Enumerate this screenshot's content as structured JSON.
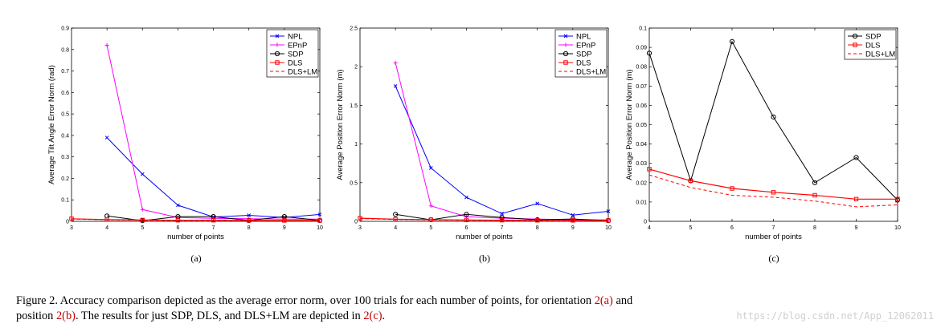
{
  "chart_data": [
    {
      "type": "line",
      "panel_label": "(a)",
      "xlabel": "number of points",
      "ylabel": "Average Tilt Angle Error Norm (rad)",
      "xlim": [
        3,
        10
      ],
      "ylim": [
        0,
        0.9
      ],
      "xticks": [
        "3",
        "4",
        "5",
        "6",
        "7",
        "8",
        "9",
        "10"
      ],
      "yticks": [
        "0",
        "0.1",
        "0.2",
        "0.3",
        "0.4",
        "0.5",
        "0.6",
        "0.7",
        "0.8",
        "0.9"
      ],
      "legend_position": "top-right",
      "series": [
        {
          "name": "NPL",
          "color": "#0000ff",
          "dash": "",
          "marker": "x",
          "x": [
            4,
            5,
            6,
            7,
            8,
            9,
            10
          ],
          "y": [
            0.39,
            0.22,
            0.075,
            0.02,
            0.028,
            0.018,
            0.032
          ]
        },
        {
          "name": "EPnP",
          "color": "#ff00ff",
          "dash": "",
          "marker": "plus",
          "x": [
            4,
            5,
            6,
            7,
            8,
            9,
            10
          ],
          "y": [
            0.82,
            0.055,
            0.018,
            0.014,
            0.012,
            0.01,
            0.01
          ]
        },
        {
          "name": "SDP",
          "color": "#000000",
          "dash": "",
          "marker": "circle",
          "x": [
            4,
            5,
            6,
            7,
            8,
            9,
            10
          ],
          "y": [
            0.025,
            0.003,
            0.022,
            0.022,
            0.004,
            0.022,
            0.004
          ]
        },
        {
          "name": "DLS",
          "color": "#ff0000",
          "dash": "",
          "marker": "square",
          "x": [
            3,
            4,
            5,
            6,
            7,
            8,
            9,
            10
          ],
          "y": [
            0.012,
            0.008,
            0.006,
            0.005,
            0.005,
            0.004,
            0.004,
            0.004
          ]
        },
        {
          "name": "DLS+LM",
          "color": "#ff0000",
          "dash": "4,3",
          "marker": "none",
          "x": [
            3,
            4,
            5,
            6,
            7,
            8,
            9,
            10
          ],
          "y": [
            0.011,
            0.007,
            0.005,
            0.004,
            0.004,
            0.003,
            0.003,
            0.003
          ]
        }
      ]
    },
    {
      "type": "line",
      "panel_label": "(b)",
      "xlabel": "number of points",
      "ylabel": "Average Position Error Norm (m)",
      "xlim": [
        3,
        10
      ],
      "ylim": [
        0,
        2.5
      ],
      "xticks": [
        "3",
        "4",
        "5",
        "6",
        "7",
        "8",
        "9",
        "10"
      ],
      "yticks": [
        "0",
        "0.5",
        "1",
        "1.5",
        "2",
        "2.5"
      ],
      "legend_position": "top-right",
      "series": [
        {
          "name": "NPL",
          "color": "#0000ff",
          "dash": "",
          "marker": "x",
          "x": [
            4,
            5,
            6,
            7,
            8,
            9,
            10
          ],
          "y": [
            1.75,
            0.69,
            0.31,
            0.1,
            0.23,
            0.08,
            0.13
          ]
        },
        {
          "name": "EPnP",
          "color": "#ff00ff",
          "dash": "",
          "marker": "plus",
          "x": [
            4,
            5,
            6,
            7,
            8,
            9,
            10
          ],
          "y": [
            2.05,
            0.2,
            0.06,
            0.04,
            0.03,
            0.02,
            0.02
          ]
        },
        {
          "name": "SDP",
          "color": "#000000",
          "dash": "",
          "marker": "circle",
          "x": [
            4,
            5,
            6,
            7,
            8,
            9,
            10
          ],
          "y": [
            0.09,
            0.02,
            0.09,
            0.05,
            0.02,
            0.03,
            0.01
          ]
        },
        {
          "name": "DLS",
          "color": "#ff0000",
          "dash": "",
          "marker": "square",
          "x": [
            3,
            4,
            5,
            6,
            7,
            8,
            9,
            10
          ],
          "y": [
            0.04,
            0.027,
            0.021,
            0.017,
            0.015,
            0.013,
            0.012,
            0.011
          ]
        },
        {
          "name": "DLS+LM",
          "color": "#ff0000",
          "dash": "4,3",
          "marker": "none",
          "x": [
            3,
            4,
            5,
            6,
            7,
            8,
            9,
            10
          ],
          "y": [
            0.035,
            0.024,
            0.018,
            0.014,
            0.012,
            0.01,
            0.008,
            0.008
          ]
        }
      ]
    },
    {
      "type": "line",
      "panel_label": "(c)",
      "xlabel": "number of points",
      "ylabel": "Average Position Error Norm (m)",
      "xlim": [
        4,
        10
      ],
      "ylim": [
        0,
        0.1
      ],
      "xticks": [
        "4",
        "5",
        "6",
        "7",
        "8",
        "9",
        "10"
      ],
      "yticks": [
        "0",
        "0.01",
        "0.02",
        "0.03",
        "0.04",
        "0.05",
        "0.06",
        "0.07",
        "0.08",
        "0.09",
        "0.1"
      ],
      "legend_position": "top-right",
      "series": [
        {
          "name": "SDP",
          "color": "#000000",
          "dash": "",
          "marker": "circle",
          "x": [
            4,
            5,
            6,
            7,
            8,
            9,
            10
          ],
          "y": [
            0.087,
            0.021,
            0.093,
            0.054,
            0.02,
            0.033,
            0.011
          ]
        },
        {
          "name": "DLS",
          "color": "#ff0000",
          "dash": "",
          "marker": "square",
          "x": [
            4,
            5,
            6,
            7,
            8,
            9,
            10
          ],
          "y": [
            0.027,
            0.021,
            0.017,
            0.015,
            0.0135,
            0.0115,
            0.0115
          ]
        },
        {
          "name": "DLS+LM",
          "color": "#ff0000",
          "dash": "4,3",
          "marker": "none",
          "x": [
            4,
            5,
            6,
            7,
            8,
            9,
            10
          ],
          "y": [
            0.024,
            0.0175,
            0.0135,
            0.0125,
            0.0105,
            0.0075,
            0.0085
          ]
        }
      ]
    }
  ],
  "caption": {
    "line1_prefix": "Figure 2. Accuracy comparison depicted as the average error norm, over 100 trials for each number of points, for orientation ",
    "ref_a": "2(a)",
    "line1_suffix": " and",
    "line2_prefix": "position ",
    "ref_b": "2(b)",
    "line2_middle": ". The results for just SDP, DLS, and DLS+LM are depicted in ",
    "ref_c": "2(c)",
    "line2_suffix": "."
  },
  "watermark": "https://blog.csdn.net/App_12062011"
}
